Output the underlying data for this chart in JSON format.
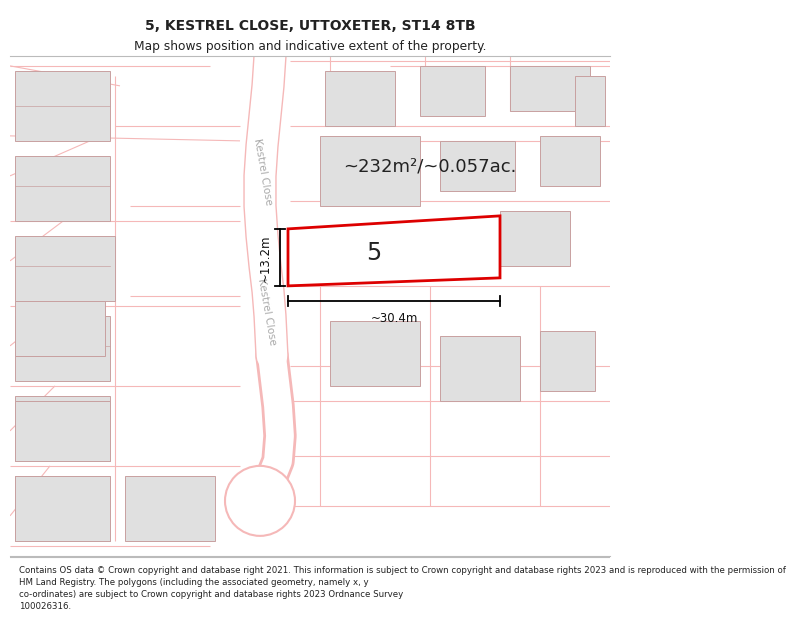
{
  "title": "5, KESTREL CLOSE, UTTOXETER, ST14 8TB",
  "subtitle": "Map shows position and indicative extent of the property.",
  "footer": "Contains OS data © Crown copyright and database right 2021. This information is subject to Crown copyright and database rights 2023 and is reproduced with the permission of\nHM Land Registry. The polygons (including the associated geometry, namely x, y\nco-ordinates) are subject to Crown copyright and database rights 2023 Ordnance Survey\n100026316.",
  "area_text": "~232m²/~0.057ac.",
  "dim_vertical": "~13.2m",
  "dim_horizontal": "~30.4m",
  "property_number": "5",
  "map_bg": "#ffffff",
  "road_color": "#f5b8b8",
  "road_fill": "#ffffff",
  "building_fill": "#e0e0e0",
  "building_stroke": "#c8a0a0",
  "property_fill": "#ffffff",
  "property_stroke": "#dd0000",
  "road_label": "Kestrel Close",
  "road_label_color": "#aaaaaa",
  "dim_color": "#111111",
  "text_color": "#222222"
}
